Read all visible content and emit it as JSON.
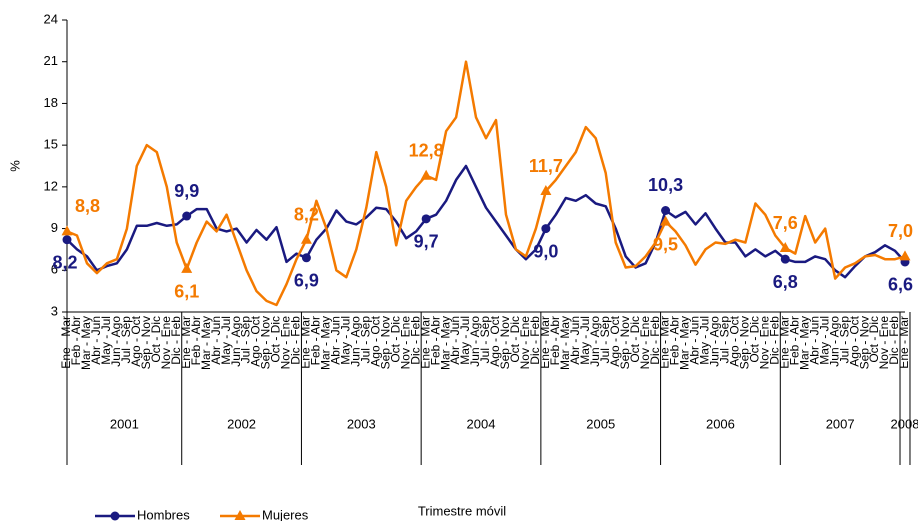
{
  "chart_data": {
    "type": "line",
    "y_label": "%",
    "x_label": "Trimestre móvil",
    "categories": [
      "Ene - Mar",
      "Feb - Abr",
      "Mar - May",
      "Abr - Jun",
      "May - Jul",
      "Jun - Ago",
      "Jul - Sep",
      "Ago - Oct",
      "Sep - Nov",
      "Oct - Dic",
      "Nov - Ene",
      "Dic - Feb",
      "Ene - Mar",
      "Feb - Abr",
      "Mar - May",
      "Abr - Jun",
      "May - Jul",
      "Jun - Ago",
      "Jul - Sep",
      "Ago - Oct",
      "Sep - Nov",
      "Oct - Dic",
      "Nov - Ene",
      "Dic - Feb",
      "Ene - Mar",
      "Feb - Abr",
      "Mar - May",
      "Abr - Jun",
      "May - Jul",
      "Jun - Ago",
      "Jul - Sep",
      "Ago - Oct",
      "Sep - Nov",
      "Oct - Dic",
      "Nov - Ene",
      "Dic - Feb",
      "Ene - Mar",
      "Feb - Abr",
      "Mar - May",
      "Abr - Jun",
      "May - Jul",
      "Jun - Ago",
      "Jul - Sep",
      "Ago - Oct",
      "Sep - Nov",
      "Oct - Dic",
      "Nov - Ene",
      "Dic - Feb",
      "Ene - Mar",
      "Feb - Abr",
      "Mar - May",
      "Abr - Jun",
      "May - Jul",
      "Jun - Ago",
      "Jul - Sep",
      "Ago - Oct",
      "Sep - Nov",
      "Oct - Dic",
      "Nov - Ene",
      "Dic - Feb",
      "Ene - Mar",
      "Feb - Abr",
      "Mar - May",
      "Abr - Jun",
      "May - Jul",
      "Jun - Ago",
      "Jul - Sep",
      "Ago - Oct",
      "Sep - Nov",
      "Oct - Dic",
      "Nov - Ene",
      "Dic - Feb",
      "Ene - Mar",
      "Feb - Abr",
      "Mar - May",
      "Abr - Jun",
      "May - Jul",
      "Jun - Ago",
      "Jul - Sep",
      "Ago - Oct",
      "Sep - Nov",
      "Oct - Dic",
      "Nov - Ene",
      "Dic - Feb",
      "Ene - Mar"
    ],
    "years": [
      "2001",
      "2002",
      "2003",
      "2004",
      "2005",
      "2006",
      "2007",
      "2008"
    ],
    "series": [
      {
        "name": "Hombres",
        "color": "#1a1a80",
        "marker": "circle",
        "values": [
          8.2,
          7.5,
          7.0,
          6.0,
          6.3,
          6.5,
          7.5,
          9.2,
          9.2,
          9.4,
          9.2,
          9.3,
          9.9,
          10.4,
          10.4,
          9.0,
          8.8,
          9.0,
          8.0,
          8.9,
          8.2,
          9.1,
          6.6,
          7.2,
          6.9,
          8.2,
          9.0,
          10.3,
          9.5,
          9.3,
          9.8,
          10.5,
          10.4,
          9.5,
          8.3,
          8.8,
          9.7,
          10.0,
          11.0,
          12.5,
          13.5,
          12.0,
          10.5,
          9.5,
          8.5,
          7.5,
          6.8,
          7.5,
          9.0,
          10.0,
          11.2,
          11.0,
          11.4,
          10.8,
          10.6,
          9.0,
          7.0,
          6.2,
          6.5,
          8.0,
          10.3,
          9.8,
          10.2,
          9.3,
          10.1,
          9.0,
          8.0,
          8.0,
          7.0,
          7.5,
          7.0,
          7.4,
          6.8,
          6.6,
          6.6,
          7.0,
          6.8,
          6.0,
          5.5,
          6.3,
          7.0,
          7.3,
          7.8,
          7.4,
          6.6
        ],
        "value_labels": [
          "8,2",
          null,
          null,
          null,
          null,
          null,
          null,
          null,
          null,
          null,
          null,
          null,
          "9,9",
          null,
          null,
          null,
          null,
          null,
          null,
          null,
          null,
          null,
          null,
          null,
          "6,9",
          null,
          null,
          null,
          null,
          null,
          null,
          null,
          null,
          null,
          null,
          null,
          "9,7",
          null,
          null,
          null,
          null,
          null,
          null,
          null,
          null,
          null,
          null,
          null,
          "9,0",
          null,
          null,
          null,
          null,
          null,
          null,
          null,
          null,
          null,
          null,
          null,
          "10,3",
          null,
          null,
          null,
          null,
          null,
          null,
          null,
          null,
          null,
          null,
          null,
          "6,8",
          null,
          null,
          null,
          null,
          null,
          null,
          null,
          null,
          null,
          null,
          null,
          "6,6"
        ]
      },
      {
        "name": "Mujeres",
        "color": "#f47a00",
        "marker": "triangle",
        "values": [
          8.8,
          8.5,
          6.5,
          5.8,
          6.5,
          6.8,
          9.0,
          13.5,
          15.0,
          14.5,
          12.0,
          8.0,
          6.1,
          8.0,
          9.5,
          8.8,
          10.0,
          8.0,
          6.0,
          4.5,
          3.8,
          3.5,
          5.0,
          6.8,
          8.2,
          11.0,
          9.0,
          6.0,
          5.5,
          7.5,
          10.5,
          14.5,
          12.0,
          7.8,
          11.0,
          12.0,
          12.8,
          12.5,
          16.0,
          17.0,
          21.0,
          17.0,
          15.5,
          16.8,
          10.0,
          7.5,
          7.0,
          9.0,
          11.7,
          12.5,
          13.5,
          14.5,
          16.3,
          15.5,
          13.0,
          8.0,
          6.2,
          6.3,
          7.0,
          8.0,
          9.5,
          8.8,
          7.8,
          6.4,
          7.5,
          8.0,
          7.9,
          8.2,
          8.0,
          10.8,
          10.0,
          8.5,
          7.6,
          7.2,
          9.9,
          8.0,
          9.0,
          5.4,
          6.2,
          6.5,
          7.0,
          7.1,
          6.8,
          6.8,
          7.0
        ],
        "value_labels": [
          "8,8",
          null,
          null,
          null,
          null,
          null,
          null,
          null,
          null,
          null,
          null,
          null,
          "6,1",
          null,
          null,
          null,
          null,
          null,
          null,
          null,
          null,
          null,
          null,
          null,
          "8,2",
          null,
          null,
          null,
          null,
          null,
          null,
          null,
          null,
          null,
          null,
          null,
          "12,8",
          null,
          null,
          null,
          null,
          null,
          null,
          null,
          null,
          null,
          null,
          null,
          "11,7",
          null,
          null,
          null,
          null,
          null,
          null,
          null,
          null,
          null,
          null,
          null,
          "9,5",
          null,
          null,
          null,
          null,
          null,
          null,
          null,
          null,
          null,
          null,
          null,
          "7,6",
          null,
          null,
          null,
          null,
          null,
          null,
          null,
          null,
          null,
          null,
          null,
          "7,0"
        ]
      }
    ],
    "ylim": [
      3,
      24
    ],
    "yticks": [
      3,
      6,
      9,
      12,
      15,
      18,
      21,
      24
    ],
    "grid": false
  }
}
